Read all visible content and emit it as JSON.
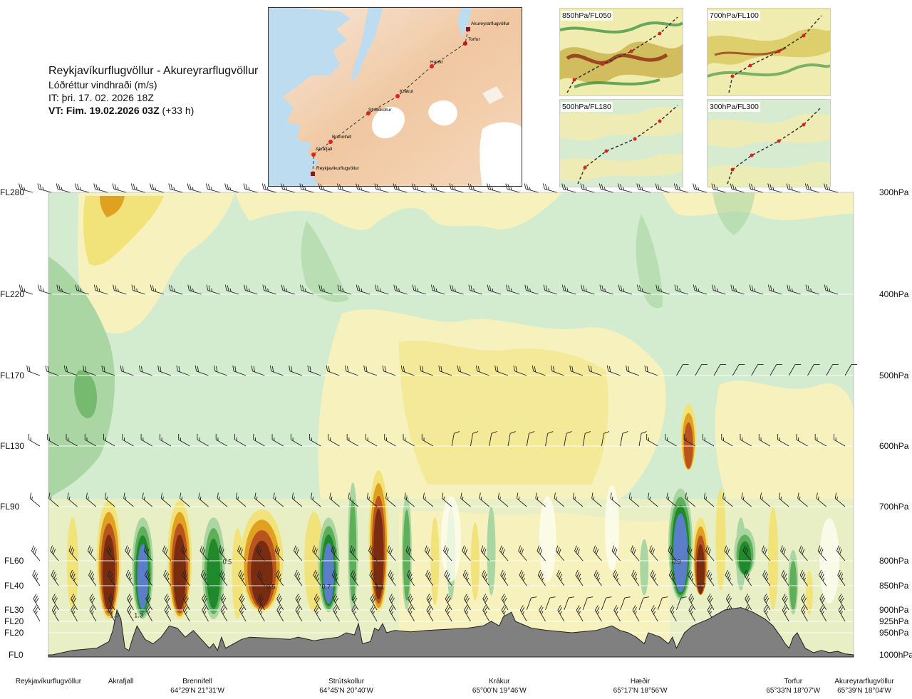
{
  "header": {
    "route": "Reykjavíkurflugvöllur - Akureyrarflugvöllur",
    "parameter": "Lóðréttur vindhraði (m/s)",
    "issue_time": "IT: þri. 17. 02. 2026 18Z",
    "valid_prefix": "VT: Fim. 19.02.2026 03Z",
    "valid_suffix": "(+33 h)"
  },
  "map": {
    "waypoints": [
      "Akureyrarflugvöllur",
      "Torfur",
      "Hæðir",
      "Krákur",
      "Strútskollur",
      "Brennifell",
      "Akrafjall",
      "Reykjavíkurflugvöllur"
    ]
  },
  "mini_maps": [
    {
      "label": "850hPa/FL050"
    },
    {
      "label": "700hPa/FL100"
    },
    {
      "label": "500hPa/FL180"
    },
    {
      "label": "300hPa/FL300"
    }
  ],
  "chart_data": {
    "type": "heatmap",
    "levels": [
      {
        "fl": "FL280",
        "hpa": "300hPa",
        "pressure": 300
      },
      {
        "fl": "FL220",
        "hpa": "400hPa",
        "pressure": 400
      },
      {
        "fl": "FL170",
        "hpa": "500hPa",
        "pressure": 500
      },
      {
        "fl": "FL130",
        "hpa": "600hPa",
        "pressure": 600
      },
      {
        "fl": "FL90",
        "hpa": "700hPa",
        "pressure": 700
      },
      {
        "fl": "FL60",
        "hpa": "800hPa",
        "pressure": 800
      },
      {
        "fl": "FL40",
        "hpa": "850hPa",
        "pressure": 850
      },
      {
        "fl": "FL30",
        "hpa": "900hPa",
        "pressure": 900
      },
      {
        "fl": "FL20",
        "hpa": "925hPa",
        "pressure": 925
      },
      {
        "fl": "FL20",
        "hpa": "950hPa",
        "pressure": 950
      },
      {
        "fl": "FL0",
        "hpa": "1000hPa",
        "pressure": 1000
      }
    ],
    "locations": [
      {
        "name": "Reykjavíkurflugvöllur",
        "coord": "",
        "dist": 0.0
      },
      {
        "name": "Akrafjall",
        "coord": "",
        "dist": 0.09
      },
      {
        "name": "Brennifell",
        "coord": "64°29'N 21°31'W",
        "dist": 0.185
      },
      {
        "name": "Strútskollur",
        "coord": "64°45'N 20°40'W",
        "dist": 0.37
      },
      {
        "name": "Krákur",
        "coord": "65°00'N 19°46'W",
        "dist": 0.56
      },
      {
        "name": "Hæðir",
        "coord": "65°17'N 18°56'W",
        "dist": 0.735
      },
      {
        "name": "Torfur",
        "coord": "65°33'N 18°07'W",
        "dist": 0.925
      },
      {
        "name": "Akureyrarflugvöllur",
        "coord": "65°39'N 18°04'W",
        "dist": 1.0
      }
    ],
    "value_labels": [
      {
        "text": "1.0",
        "dist": 0.082,
        "pressure": 912
      },
      {
        "text": "1.3",
        "dist": 0.112,
        "pressure": 912
      },
      {
        "text": "0.5",
        "dist": 0.222,
        "pressure": 802
      },
      {
        "text": "-0.5",
        "dist": 0.275,
        "pressure": 852
      },
      {
        "text": "0.7",
        "dist": 0.345,
        "pressure": 852
      },
      {
        "text": "-1.1",
        "dist": 0.41,
        "pressure": 852
      },
      {
        "text": "0.9",
        "dist": 0.78,
        "pressure": 802
      },
      {
        "text": "-0.7",
        "dist": 0.81,
        "pressure": 850
      }
    ],
    "palette": {
      "strong_down": "#7a2c10",
      "down3": "#b8541e",
      "down2": "#e0a020",
      "down1": "#f2e27a",
      "weak_down": "#f7f2bd",
      "neutral": "#fdfdf0",
      "weak_up": "#d3ecd0",
      "up1": "#a9d6a2",
      "up2": "#5fae5a",
      "up3": "#1f8a2c",
      "strong_up": "#5a7fc8",
      "terrain": "#808080"
    }
  }
}
